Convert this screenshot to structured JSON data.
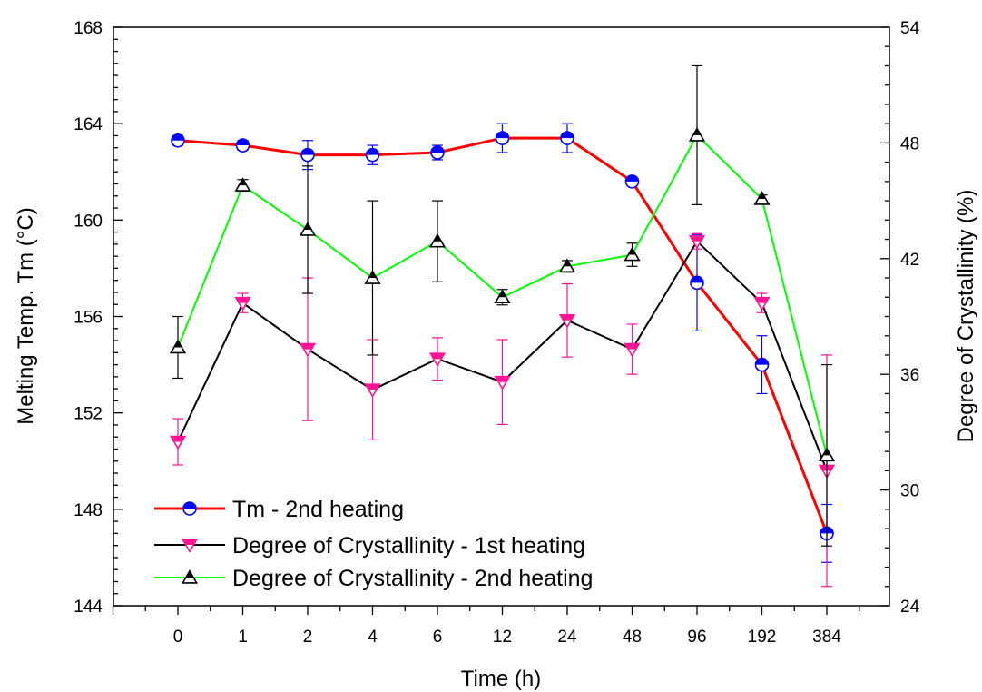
{
  "chart_data": {
    "type": "line",
    "x_axis": {
      "label": "Time (h)",
      "categories": [
        "0",
        "1",
        "2",
        "4",
        "6",
        "12",
        "24",
        "48",
        "96",
        "192",
        "384"
      ]
    },
    "y_axis_left": {
      "label": "Melting Temp. Tm (°C)",
      "range": [
        144,
        168
      ],
      "ticks": [
        "144",
        "148",
        "152",
        "156",
        "160",
        "164",
        "168"
      ]
    },
    "y_axis_right": {
      "label": "Degree of Crystallinity (%)",
      "range": [
        24,
        54
      ],
      "ticks": [
        "24",
        "30",
        "36",
        "42",
        "48",
        "54"
      ]
    },
    "legend_position": "bottom-left",
    "grid": false,
    "series": [
      {
        "name": "Tm - 2nd heating",
        "axis": "left",
        "line_color": "#ff0000",
        "marker": "circle-half",
        "marker_color": "#0000ff",
        "values": [
          163.3,
          163.1,
          162.7,
          162.7,
          162.8,
          163.4,
          163.4,
          161.6,
          157.4,
          154.0,
          147.0
        ],
        "errors": [
          0.2,
          0.2,
          0.6,
          0.4,
          0.3,
          0.6,
          0.6,
          0.15,
          2.0,
          1.2,
          1.2
        ]
      },
      {
        "name": "Degree of Crystallinity - 1st heating",
        "axis": "right",
        "line_color": "#000000",
        "marker": "triangle-down-half",
        "marker_color": "#ff1493",
        "values": [
          32.5,
          39.7,
          37.3,
          35.2,
          36.8,
          35.6,
          38.8,
          37.3,
          42.9,
          39.7,
          31.0
        ],
        "errors": [
          1.2,
          0.5,
          3.7,
          2.6,
          1.1,
          2.2,
          1.9,
          1.3,
          0.4,
          0.5,
          6.0
        ]
      },
      {
        "name": "Degree of Crystallinity - 2nd heating",
        "axis": "right",
        "line_color": "#00ff00",
        "marker": "triangle-up-half",
        "marker_color": "#000000",
        "values": [
          37.4,
          45.8,
          43.5,
          41.0,
          42.9,
          40.0,
          41.6,
          42.2,
          48.4,
          45.1,
          31.8
        ],
        "errors": [
          1.6,
          0.3,
          3.3,
          4.0,
          2.1,
          0.4,
          0.3,
          0.6,
          3.6,
          0.2,
          4.7
        ]
      }
    ]
  }
}
